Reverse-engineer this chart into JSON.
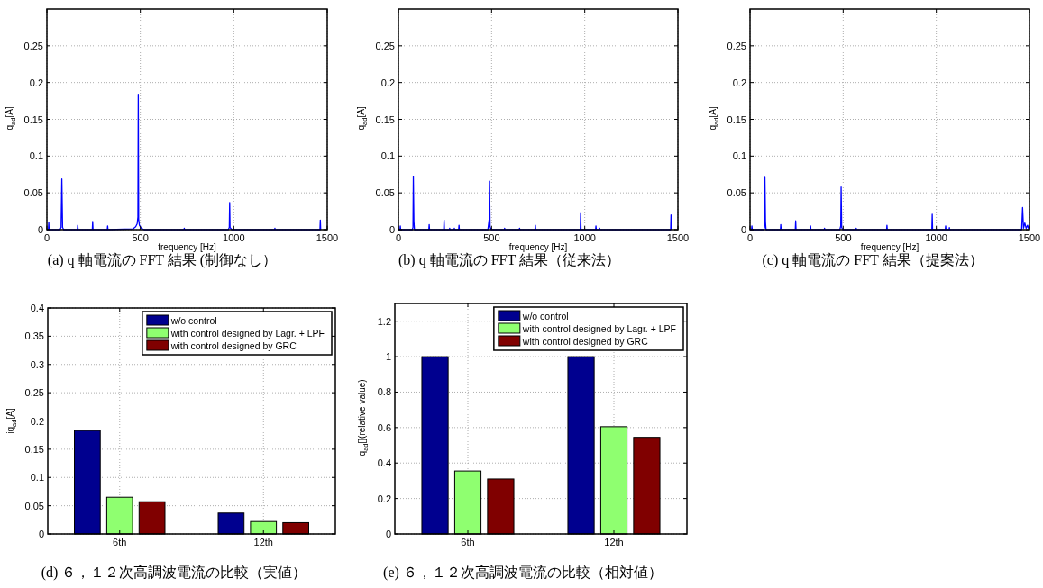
{
  "chart_data": [
    {
      "type": "line",
      "title": "(a) q 軸電流の FFT 結果 (制御なし）",
      "xlabel": "frequency [Hz]",
      "ylabel": "iq$_{ad}$[A]",
      "xlim": [
        0,
        1500
      ],
      "xticks": [
        0,
        500,
        1000,
        1500
      ],
      "ylim": [
        0,
        0.3
      ],
      "yticks": [
        0,
        0.05,
        0.1,
        0.15,
        0.2,
        0.25
      ],
      "grid": true,
      "x": [
        0,
        8,
        10,
        12,
        70,
        76,
        80,
        84,
        90,
        163,
        165,
        167,
        243,
        245,
        247,
        323,
        325,
        327,
        460,
        475,
        483,
        487,
        489,
        491,
        495,
        505,
        520,
        733,
        735,
        737,
        970,
        976,
        978,
        980,
        990,
        1218,
        1220,
        1222,
        1461,
        1463,
        1465
      ],
      "series": [
        {
          "color": "#0000ff",
          "values": [
            0,
            0,
            0.01,
            0,
            0,
            0.003,
            0.069,
            0.003,
            0,
            0,
            0.006,
            0,
            0,
            0.011,
            0,
            0,
            0.005,
            0,
            0.001,
            0.004,
            0.008,
            0.017,
            0.184,
            0.014,
            0.006,
            0.002,
            0,
            0,
            0.002,
            0,
            0,
            0.003,
            0.037,
            0.003,
            0,
            0,
            0.002,
            0,
            0,
            0.013,
            0
          ]
        }
      ]
    },
    {
      "type": "line",
      "title": "(b) q 軸電流の FFT 結果（従来法）",
      "xlabel": "frequency [Hz]",
      "ylabel": "iq$_{ad}$[A]",
      "xlim": [
        0,
        1500
      ],
      "xticks": [
        0,
        500,
        1000,
        1500
      ],
      "ylim": [
        0,
        0.3
      ],
      "yticks": [
        0,
        0.05,
        0.1,
        0.15,
        0.2,
        0.25
      ],
      "grid": true,
      "x": [
        0,
        8,
        10,
        12,
        74,
        78,
        80,
        83,
        86,
        163,
        165,
        167,
        243,
        245,
        247,
        273,
        275,
        277,
        298,
        300,
        302,
        323,
        325,
        327,
        480,
        487,
        489,
        492,
        498,
        568,
        570,
        572,
        648,
        650,
        652,
        733,
        735,
        737,
        976,
        978,
        980,
        1058,
        1060,
        1062,
        1078,
        1080,
        1082,
        1461,
        1463,
        1465
      ],
      "series": [
        {
          "color": "#0000ff",
          "values": [
            0,
            0,
            0.005,
            0,
            0,
            0.003,
            0.072,
            0.011,
            0,
            0,
            0.007,
            0,
            0,
            0.013,
            0,
            0,
            0.002,
            0,
            0,
            0.002,
            0,
            0,
            0.006,
            0,
            0,
            0.014,
            0.066,
            0.004,
            0,
            0,
            0.002,
            0,
            0,
            0.002,
            0,
            0,
            0.006,
            0,
            0,
            0.023,
            0,
            0,
            0.005,
            0,
            0,
            0.002,
            0,
            0,
            0.02,
            0
          ]
        }
      ]
    },
    {
      "type": "line",
      "title": "(c) q 軸電流の FFT 結果（提案法）",
      "xlabel": "frequency [Hz]",
      "ylabel": "iq$_{ad}$[A]",
      "xlim": [
        0,
        1500
      ],
      "xticks": [
        0,
        500,
        1000,
        1500
      ],
      "ylim": [
        0,
        0.3
      ],
      "yticks": [
        0,
        0.05,
        0.1,
        0.15,
        0.2,
        0.25
      ],
      "grid": true,
      "x": [
        0,
        8,
        10,
        12,
        74,
        78,
        80,
        83,
        86,
        163,
        165,
        167,
        243,
        245,
        247,
        323,
        325,
        327,
        398,
        400,
        402,
        482,
        487,
        489,
        492,
        498,
        568,
        570,
        572,
        733,
        735,
        737,
        976,
        978,
        980,
        1048,
        1050,
        1052,
        1068,
        1070,
        1072,
        1458,
        1463,
        1468,
        1475,
        1482,
        1490,
        1495,
        1500
      ],
      "series": [
        {
          "color": "#0000ff",
          "values": [
            0,
            0,
            0.005,
            0,
            0,
            0.003,
            0.071,
            0.01,
            0,
            0,
            0.007,
            0,
            0,
            0.012,
            0,
            0,
            0.005,
            0,
            0,
            0.002,
            0,
            0,
            0.005,
            0.058,
            0.003,
            0,
            0,
            0.002,
            0,
            0,
            0.006,
            0,
            0,
            0.021,
            0,
            0,
            0.005,
            0,
            0,
            0.003,
            0,
            0,
            0.03,
            0.002,
            0.009,
            0.002,
            0.006,
            0.001,
            0.004
          ]
        }
      ]
    },
    {
      "type": "bar",
      "title": "(d) ６，１２次高調波電流の比較（実値）",
      "ylabel": "iq$_{ad}$[A]",
      "categories": [
        "6th",
        "12th"
      ],
      "ylim": [
        0,
        0.4
      ],
      "yticks": [
        0,
        0.05,
        0.1,
        0.15,
        0.2,
        0.25,
        0.3,
        0.35,
        0.4
      ],
      "grid": true,
      "legend": "top right",
      "series": [
        {
          "name": "w/o control",
          "color": "#00008f",
          "values": [
            0.183,
            0.037
          ]
        },
        {
          "name": "with control designed by Lagr. + LPF",
          "color": "#8fff70",
          "values": [
            0.065,
            0.022
          ]
        },
        {
          "name": "with control designed by GRC",
          "color": "#800000",
          "values": [
            0.057,
            0.02
          ]
        }
      ]
    },
    {
      "type": "bar",
      "title": "(e) ６，１２次高調波電流の比較（相対値）",
      "ylabel": "iq$_{ad}$[](relative value)",
      "categories": [
        "6th",
        "12th"
      ],
      "ylim": [
        0,
        1.3
      ],
      "yticks": [
        0,
        0.2,
        0.4,
        0.6,
        0.8,
        1,
        1.2
      ],
      "grid": true,
      "legend": "top right",
      "series": [
        {
          "name": "w/o control",
          "color": "#00008f",
          "values": [
            1,
            1
          ]
        },
        {
          "name": "with control designed by Lagr. + LPF",
          "color": "#8fff70",
          "values": [
            0.355,
            0.605
          ]
        },
        {
          "name": "with control designed by GRC",
          "color": "#800000",
          "values": [
            0.31,
            0.545
          ]
        }
      ]
    }
  ]
}
